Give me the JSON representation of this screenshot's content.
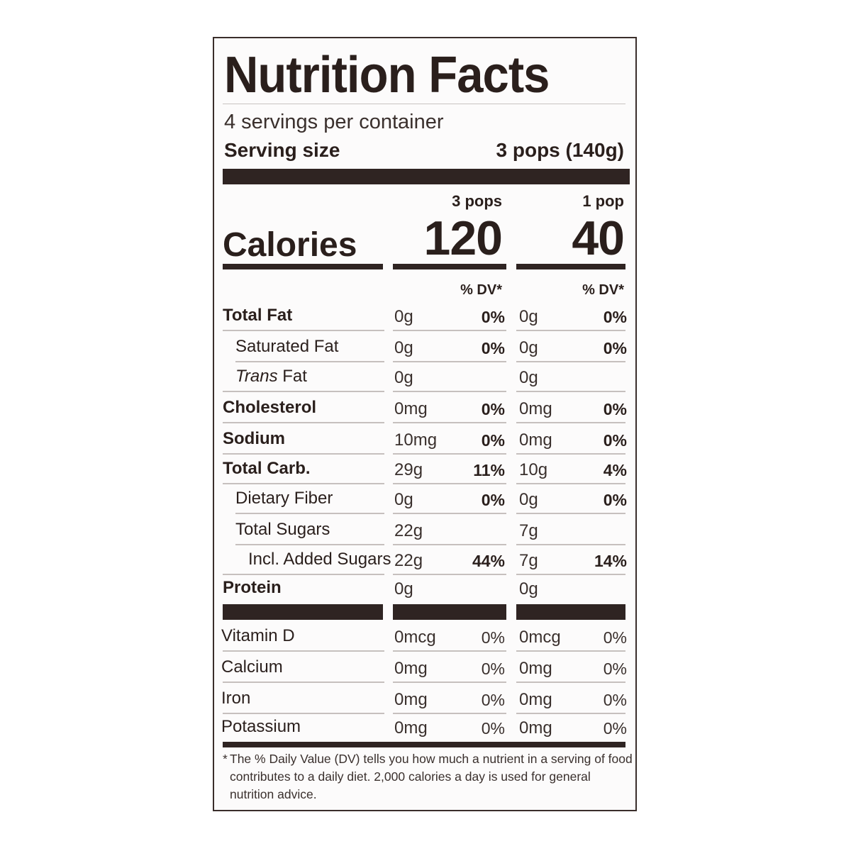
{
  "title": "Nutrition Facts",
  "servings_per_container": "4 servings per container",
  "serving_size_label": "Serving size",
  "serving_size_value": "3 pops (140g)",
  "columns": [
    {
      "header": "3 pops",
      "calories": "120",
      "dv_header": "% DV*"
    },
    {
      "header": "1 pop",
      "calories": "40",
      "dv_header": "% DV*"
    }
  ],
  "calories_label": "Calories",
  "nutrients": [
    {
      "name": "Total Fat",
      "c1_amount": "0g",
      "c1_dv": "0%",
      "c2_amount": "0g",
      "c2_dv": "0%"
    },
    {
      "name": "Saturated Fat",
      "c1_amount": "0g",
      "c1_dv": "0%",
      "c2_amount": "0g",
      "c2_dv": "0%"
    },
    {
      "name_italic": "Trans",
      "name": " Fat",
      "c1_amount": "0g",
      "c1_dv": "",
      "c2_amount": "0g",
      "c2_dv": ""
    },
    {
      "name": "Cholesterol",
      "c1_amount": "0mg",
      "c1_dv": "0%",
      "c2_amount": "0mg",
      "c2_dv": "0%"
    },
    {
      "name": "Sodium",
      "c1_amount": "10mg",
      "c1_dv": "0%",
      "c2_amount": "0mg",
      "c2_dv": "0%"
    },
    {
      "name": "Total Carb.",
      "c1_amount": "29g",
      "c1_dv": "11%",
      "c2_amount": "10g",
      "c2_dv": "4%"
    },
    {
      "name": "Dietary Fiber",
      "c1_amount": "0g",
      "c1_dv": "0%",
      "c2_amount": "0g",
      "c2_dv": "0%"
    },
    {
      "name": "Total Sugars",
      "c1_amount": "22g",
      "c1_dv": "",
      "c2_amount": "7g",
      "c2_dv": ""
    },
    {
      "name": "Incl. Added Sugars",
      "c1_amount": "22g",
      "c1_dv": "44%",
      "c2_amount": "7g",
      "c2_dv": "14%"
    },
    {
      "name": "Protein",
      "c1_amount": "0g",
      "c1_dv": "",
      "c2_amount": "0g",
      "c2_dv": ""
    }
  ],
  "vitamins": [
    {
      "name": "Vitamin D",
      "c1_amount": "0mcg",
      "c1_dv": "0%",
      "c2_amount": "0mcg",
      "c2_dv": "0%"
    },
    {
      "name": "Calcium",
      "c1_amount": "0mg",
      "c1_dv": "0%",
      "c2_amount": "0mg",
      "c2_dv": "0%"
    },
    {
      "name": "Iron",
      "c1_amount": "0mg",
      "c1_dv": "0%",
      "c2_amount": "0mg",
      "c2_dv": "0%"
    },
    {
      "name": "Potassium",
      "c1_amount": "0mg",
      "c1_dv": "0%",
      "c2_amount": "0mg",
      "c2_dv": "0%"
    }
  ],
  "footnote_star": "*",
  "footnote": "The % Daily Value (DV) tells you how much a nutrient in a serving of food contributes to a daily diet. 2,000 calories a day is used for general nutrition advice.",
  "colors": {
    "ink": "#2f2422",
    "border": "#3a2e2b",
    "rule": "#c6c0be"
  }
}
